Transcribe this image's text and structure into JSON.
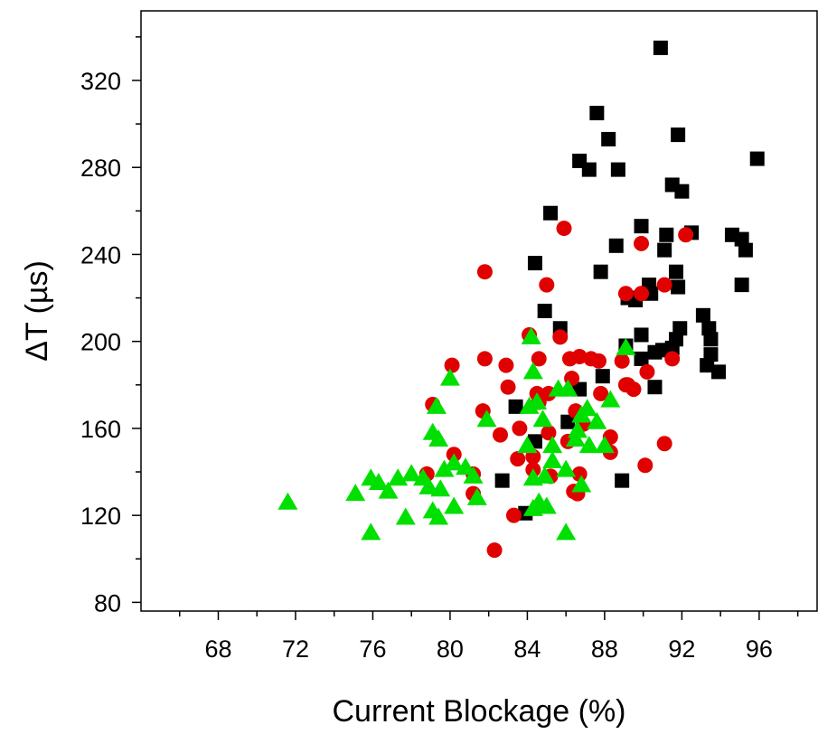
{
  "chart_data": {
    "type": "scatter",
    "title": "",
    "xlabel": "Current Blockage (%)",
    "ylabel": "ΔT (µs)",
    "xlim": [
      64,
      99
    ],
    "ylim": [
      76,
      352
    ],
    "xticks": [
      68,
      72,
      76,
      80,
      84,
      88,
      92,
      96
    ],
    "yticks": [
      80,
      120,
      160,
      200,
      240,
      280,
      320
    ],
    "grid": false,
    "legend": "none",
    "series": [
      {
        "marker": "square",
        "color": "#000000",
        "points": [
          [
            90.9,
            335
          ],
          [
            87.6,
            305
          ],
          [
            91.8,
            295
          ],
          [
            88.2,
            293
          ],
          [
            86.7,
            283
          ],
          [
            87.2,
            279
          ],
          [
            88.7,
            279
          ],
          [
            95.9,
            284
          ],
          [
            91.5,
            272
          ],
          [
            92.0,
            269
          ],
          [
            85.2,
            259
          ],
          [
            89.9,
            253
          ],
          [
            91.2,
            249
          ],
          [
            92.5,
            250
          ],
          [
            94.6,
            249
          ],
          [
            95.1,
            247
          ],
          [
            88.6,
            244
          ],
          [
            91.1,
            242
          ],
          [
            95.3,
            242
          ],
          [
            84.4,
            236
          ],
          [
            87.8,
            232
          ],
          [
            91.7,
            232
          ],
          [
            90.3,
            226
          ],
          [
            91.8,
            225
          ],
          [
            95.1,
            226
          ],
          [
            90.4,
            222
          ],
          [
            89.2,
            220
          ],
          [
            89.6,
            219
          ],
          [
            84.9,
            214
          ],
          [
            93.1,
            212
          ],
          [
            85.7,
            206
          ],
          [
            91.9,
            206
          ],
          [
            93.4,
            206
          ],
          [
            89.9,
            203
          ],
          [
            91.7,
            201
          ],
          [
            93.5,
            201
          ],
          [
            89.1,
            198
          ],
          [
            93.5,
            194
          ],
          [
            90.6,
            195
          ],
          [
            91.0,
            196
          ],
          [
            91.5,
            197
          ],
          [
            89.9,
            192
          ],
          [
            93.3,
            189
          ],
          [
            93.9,
            186
          ],
          [
            87.9,
            184
          ],
          [
            90.6,
            179
          ],
          [
            86.7,
            178
          ],
          [
            83.4,
            170
          ],
          [
            86.1,
            163
          ],
          [
            84.4,
            154
          ],
          [
            82.7,
            136
          ],
          [
            88.9,
            136
          ],
          [
            83.9,
            121
          ]
        ]
      },
      {
        "marker": "circle",
        "color": "#e00000",
        "points": [
          [
            85.9,
            252
          ],
          [
            92.2,
            249
          ],
          [
            89.9,
            245
          ],
          [
            81.8,
            232
          ],
          [
            85.0,
            226
          ],
          [
            91.1,
            226
          ],
          [
            89.1,
            222
          ],
          [
            89.9,
            222
          ],
          [
            84.1,
            203
          ],
          [
            85.7,
            202
          ],
          [
            81.8,
            192
          ],
          [
            84.6,
            192
          ],
          [
            86.2,
            192
          ],
          [
            86.7,
            193
          ],
          [
            87.3,
            192
          ],
          [
            87.7,
            191
          ],
          [
            91.5,
            192
          ],
          [
            80.1,
            189
          ],
          [
            82.9,
            189
          ],
          [
            88.9,
            191
          ],
          [
            90.2,
            186
          ],
          [
            86.3,
            183
          ],
          [
            89.2,
            180
          ],
          [
            83.0,
            179
          ],
          [
            84.5,
            176
          ],
          [
            85.1,
            176
          ],
          [
            87.8,
            176
          ],
          [
            89.1,
            180
          ],
          [
            89.5,
            178
          ],
          [
            79.1,
            171
          ],
          [
            81.7,
            168
          ],
          [
            84.6,
            172
          ],
          [
            86.5,
            168
          ],
          [
            86.9,
            162
          ],
          [
            83.6,
            160
          ],
          [
            85.1,
            158
          ],
          [
            86.1,
            154
          ],
          [
            82.6,
            157
          ],
          [
            88.3,
            156
          ],
          [
            80.2,
            148
          ],
          [
            83.5,
            146
          ],
          [
            84.3,
            147
          ],
          [
            88.3,
            149
          ],
          [
            91.1,
            153
          ],
          [
            90.1,
            143
          ],
          [
            78.8,
            139
          ],
          [
            81.2,
            139
          ],
          [
            84.3,
            141
          ],
          [
            85.2,
            138
          ],
          [
            86.7,
            139
          ],
          [
            81.2,
            130
          ],
          [
            86.4,
            131
          ],
          [
            86.6,
            130
          ],
          [
            83.3,
            120
          ],
          [
            82.3,
            104
          ]
        ]
      },
      {
        "marker": "triangle",
        "color": "#00e000",
        "points": [
          [
            84.2,
            202
          ],
          [
            89.1,
            197
          ],
          [
            80.0,
            183
          ],
          [
            84.3,
            186
          ],
          [
            86.1,
            178
          ],
          [
            79.3,
            170
          ],
          [
            84.1,
            170
          ],
          [
            84.5,
            172
          ],
          [
            85.6,
            178
          ],
          [
            88.3,
            173
          ],
          [
            81.9,
            164
          ],
          [
            84.8,
            164
          ],
          [
            86.8,
            166
          ],
          [
            87.1,
            169
          ],
          [
            84.0,
            152
          ],
          [
            85.3,
            152
          ],
          [
            86.5,
            155
          ],
          [
            86.6,
            159
          ],
          [
            87.2,
            152
          ],
          [
            87.6,
            163
          ],
          [
            88.0,
            152
          ],
          [
            79.1,
            158
          ],
          [
            79.4,
            155
          ],
          [
            79.7,
            141
          ],
          [
            80.2,
            144
          ],
          [
            80.8,
            142
          ],
          [
            81.2,
            138
          ],
          [
            77.3,
            137
          ],
          [
            78.0,
            139
          ],
          [
            78.6,
            137
          ],
          [
            76.3,
            135
          ],
          [
            75.1,
            130
          ],
          [
            75.9,
            137
          ],
          [
            76.8,
            131
          ],
          [
            78.9,
            133
          ],
          [
            79.5,
            132
          ],
          [
            80.2,
            124
          ],
          [
            81.4,
            128
          ],
          [
            84.3,
            137
          ],
          [
            84.9,
            138
          ],
          [
            85.3,
            145
          ],
          [
            86.0,
            141
          ],
          [
            86.8,
            134
          ],
          [
            84.6,
            126
          ],
          [
            85.0,
            124
          ],
          [
            84.3,
            123
          ],
          [
            71.6,
            126
          ],
          [
            79.1,
            122
          ],
          [
            79.4,
            119
          ],
          [
            77.7,
            119
          ],
          [
            75.9,
            112
          ],
          [
            86.0,
            112
          ]
        ]
      }
    ]
  }
}
